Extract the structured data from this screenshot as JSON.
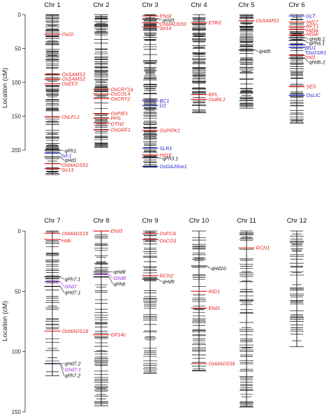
{
  "chart_data": {
    "type": "genetic-map",
    "ylabel": "Location (cM)",
    "colors": {
      "red": "#e4241f",
      "blue": "#2424cc",
      "purple": "#9b30d9",
      "black": "#111111"
    },
    "panels": [
      {
        "yticks": [
          0,
          50,
          100,
          150,
          200
        ],
        "ymax": 240,
        "chromosomes": [
          {
            "name": "Chr 1",
            "length": 236,
            "seed": 11,
            "genes": [
              {
                "name": "OsGI",
                "pos": 29,
                "color": "red",
                "style": "inline",
                "labelPos": 29
              },
              {
                "name": "OsSAMS3",
                "pos": 88,
                "color": "red",
                "style": "inline",
                "labelPos": 88
              },
              {
                "name": "OsSAMS2",
                "pos": 95,
                "color": "red",
                "style": "inline",
                "labelPos": 95
              },
              {
                "name": "OsEF3",
                "pos": 102,
                "color": "red",
                "style": "inline",
                "labelPos": 102
              },
              {
                "name": "OsLFL1",
                "pos": 151,
                "color": "red",
                "style": "inline",
                "labelPos": 151
              },
              {
                "name": "qPh1",
                "pos": 200,
                "color": "black",
                "style": "qtl",
                "labelPos": 201
              },
              {
                "name": "sd-1",
                "pos": 204,
                "color": "blue",
                "style": "inline",
                "labelPos": 208
              },
              {
                "name": "qHd1",
                "pos": 210,
                "color": "black",
                "style": "qtl",
                "labelPos": 215
              },
              {
                "name": "OsMADS51",
                "pos": 220,
                "color": "red",
                "style": "inline",
                "labelPos": 222
              },
              {
                "name": "Se13",
                "pos": 227,
                "color": "red",
                "style": "inline",
                "labelPos": 229
              }
            ]
          },
          {
            "name": "Chr 2",
            "length": 196,
            "seed": 23,
            "genes": [
              {
                "name": "OsCRY1a",
                "pos": 110,
                "color": "red",
                "style": "inline",
                "labelPos": 110
              },
              {
                "name": "OsCOL4",
                "pos": 117,
                "color": "red",
                "style": "inline",
                "labelPos": 117
              },
              {
                "name": "OsCRY2",
                "pos": 124,
                "color": "red",
                "style": "inline",
                "labelPos": 124
              },
              {
                "name": "OsPIE1",
                "pos": 146,
                "color": "red",
                "style": "inline",
                "labelPos": 146
              },
              {
                "name": "PPS",
                "pos": 153,
                "color": "red",
                "style": "inline",
                "labelPos": 153
              },
              {
                "name": "DTH2",
                "pos": 160,
                "color": "red",
                "style": "inline",
                "labelPos": 161
              },
              {
                "name": "OsGRF1",
                "pos": 170,
                "color": "red",
                "style": "inline",
                "labelPos": 170
              }
            ]
          },
          {
            "name": "Chr 3",
            "length": 225,
            "seed": 37,
            "genes": [
              {
                "name": "Ehd4",
                "pos": 2,
                "color": "red",
                "style": "inline",
                "labelPos": 2
              },
              {
                "name": "qHd3",
                "pos": 6,
                "color": "black",
                "style": "qtl",
                "labelPos": 8
              },
              {
                "name": "OsMADS50",
                "pos": 12,
                "color": "red",
                "style": "inline",
                "labelPos": 14
              },
              {
                "name": "Se14",
                "pos": 18,
                "color": "red",
                "style": "inline",
                "labelPos": 20
              },
              {
                "name": "BC1",
                "pos": 127,
                "color": "blue",
                "style": "inline",
                "labelPos": 127
              },
              {
                "name": "D2",
                "pos": 134,
                "color": "blue",
                "style": "inline",
                "labelPos": 134
              },
              {
                "name": "OsPIPK1",
                "pos": 171,
                "color": "red",
                "style": "inline",
                "labelPos": 171
              },
              {
                "name": "SLR1",
                "pos": 197,
                "color": "blue",
                "style": "inline",
                "labelPos": 197
              },
              {
                "name": "Hd16",
                "pos": 207,
                "color": "red",
                "style": "inline",
                "labelPos": 207
              },
              {
                "name": "qPh3.1",
                "pos": 211,
                "color": "black",
                "style": "qtl",
                "labelPos": 212
              },
              {
                "name": "OsGA20ox1",
                "pos": 224,
                "color": "blue",
                "style": "inline",
                "labelPos": 224
              }
            ]
          },
          {
            "name": "Chr 4",
            "length": 145,
            "seed": 41,
            "genes": [
              {
                "name": "ETR2",
                "pos": 12,
                "color": "red",
                "style": "inline",
                "labelPos": 12
              },
              {
                "name": "RFL",
                "pos": 118,
                "color": "red",
                "style": "inline",
                "labelPos": 118
              },
              {
                "name": "OsIRL1",
                "pos": 125,
                "color": "red",
                "style": "inline",
                "labelPos": 125
              }
            ]
          },
          {
            "name": "Chr 5",
            "length": 138,
            "seed": 53,
            "genes": [
              {
                "name": "OsSAMS1",
                "pos": 9,
                "color": "red",
                "style": "inline",
                "labelPos": 9
              },
              {
                "name": "qHd5",
                "pos": 52,
                "color": "black",
                "style": "qtl",
                "labelPos": 54
              }
            ]
          },
          {
            "name": "Chr 6",
            "length": 160,
            "seed": 67,
            "genes": [
              {
                "name": "DLT",
                "pos": 2,
                "color": "blue",
                "style": "inline",
                "labelPos": 2
              },
              {
                "name": "Hd17",
                "pos": 11,
                "color": "red",
                "style": "inline",
                "labelPos": 11
              },
              {
                "name": "RFT1",
                "pos": 18,
                "color": "red",
                "style": "inline",
                "labelPos": 17
              },
              {
                "name": "Hd3a",
                "pos": 22,
                "color": "red",
                "style": "inline",
                "labelPos": 23
              },
              {
                "name": "HGW",
                "pos": 30,
                "color": "red",
                "style": "inline",
                "labelPos": 29
              },
              {
                "name": "qHd6.1",
                "pos": 34,
                "color": "black",
                "style": "qtl",
                "labelPos": 36
              },
              {
                "name": "qPh6.1",
                "pos": 38,
                "color": "black",
                "style": "qtl",
                "labelPos": 42
              },
              {
                "name": "BU1",
                "pos": 44,
                "color": "blue",
                "style": "inline",
                "labelPos": 49
              },
              {
                "name": "OsGSR1",
                "pos": 48,
                "color": "blue",
                "style": "inline",
                "labelPos": 56
              },
              {
                "name": "Hd1",
                "pos": 60,
                "color": "red",
                "style": "inline",
                "labelPos": 63
              },
              {
                "name": "qHd6.2",
                "pos": 64,
                "color": "black",
                "style": "qtl",
                "labelPos": 70
              },
              {
                "name": "SE5",
                "pos": 106,
                "color": "red",
                "style": "inline",
                "labelPos": 106
              },
              {
                "name": "OsLIC",
                "pos": 119,
                "color": "blue",
                "style": "inline",
                "labelPos": 119
              }
            ]
          }
        ]
      },
      {
        "yticks": [
          0,
          50,
          100,
          150
        ],
        "ymax": 150,
        "chromosomes": [
          {
            "name": "Chr 7",
            "length": 120,
            "seed": 71,
            "genes": [
              {
                "name": "OsMADS15",
                "pos": 2,
                "color": "red",
                "style": "inline",
                "labelPos": 2
              },
              {
                "name": "Hd6",
                "pos": 7,
                "color": "red",
                "style": "inline",
                "labelPos": 8
              },
              {
                "name": "qPh7.1",
                "pos": 38,
                "color": "black",
                "style": "qtl",
                "labelPos": 40
              },
              {
                "name": "Ghd7",
                "pos": 42,
                "color": "purple",
                "style": "qtl",
                "labelPos": 46
              },
              {
                "name": "qHd7.1",
                "pos": 46,
                "color": "black",
                "style": "qtl",
                "labelPos": 51
              },
              {
                "name": "OsMADS18",
                "pos": 83,
                "color": "red",
                "style": "inline",
                "labelPos": 83
              },
              {
                "name": "qHd7.2",
                "pos": 110,
                "color": "black",
                "style": "qtl",
                "labelPos": 110
              },
              {
                "name": "Ghd7.1",
                "pos": 110,
                "color": "purple",
                "style": "qtl",
                "labelPos": 115
              },
              {
                "name": "qPh7.2",
                "pos": 110,
                "color": "black",
                "style": "qtl",
                "labelPos": 120
              }
            ]
          },
          {
            "name": "Chr 8",
            "length": 145,
            "seed": 83,
            "genes": [
              {
                "name": "Ehd3",
                "pos": 0,
                "color": "red",
                "style": "inline",
                "labelPos": 0
              },
              {
                "name": "qHd8",
                "pos": 34,
                "color": "black",
                "style": "qtl",
                "labelPos": 34
              },
              {
                "name": "Ghd8",
                "pos": 36,
                "color": "purple",
                "style": "qtl",
                "labelPos": 39
              },
              {
                "name": "qPh8",
                "pos": 38,
                "color": "black",
                "style": "qtl",
                "labelPos": 44
              },
              {
                "name": "GF14c",
                "pos": 86,
                "color": "red",
                "style": "inline",
                "labelPos": 86
              }
            ]
          },
          {
            "name": "Chr 9",
            "length": 118,
            "seed": 97,
            "genes": [
              {
                "name": "OsFCA",
                "pos": 2,
                "color": "red",
                "style": "inline",
                "labelPos": 2
              },
              {
                "name": "OsCO3",
                "pos": 7,
                "color": "red",
                "style": "inline",
                "labelPos": 8
              },
              {
                "name": "RCN2",
                "pos": 37,
                "color": "red",
                "style": "inline",
                "labelPos": 37
              },
              {
                "name": "qHd9",
                "pos": 40,
                "color": "black",
                "style": "qtl",
                "labelPos": 42
              }
            ]
          },
          {
            "name": "Chr 10",
            "length": 116,
            "seed": 101,
            "genes": [
              {
                "name": "qHd10",
                "pos": 29,
                "color": "black",
                "style": "qtl",
                "labelPos": 31
              },
              {
                "name": "RID1",
                "pos": 50,
                "color": "red",
                "style": "inline",
                "labelPos": 50
              },
              {
                "name": "Ehd1",
                "pos": 64,
                "color": "red",
                "style": "inline",
                "labelPos": 64
              },
              {
                "name": "OsMADS56",
                "pos": 110,
                "color": "red",
                "style": "inline",
                "labelPos": 110
              }
            ]
          },
          {
            "name": "Chr 11",
            "length": 146,
            "seed": 113,
            "genes": [
              {
                "name": "RCN1",
                "pos": 14,
                "color": "red",
                "style": "inline",
                "labelPos": 14
              }
            ]
          },
          {
            "name": "Chr 12",
            "length": 96,
            "seed": 127,
            "genes": []
          }
        ]
      }
    ]
  }
}
